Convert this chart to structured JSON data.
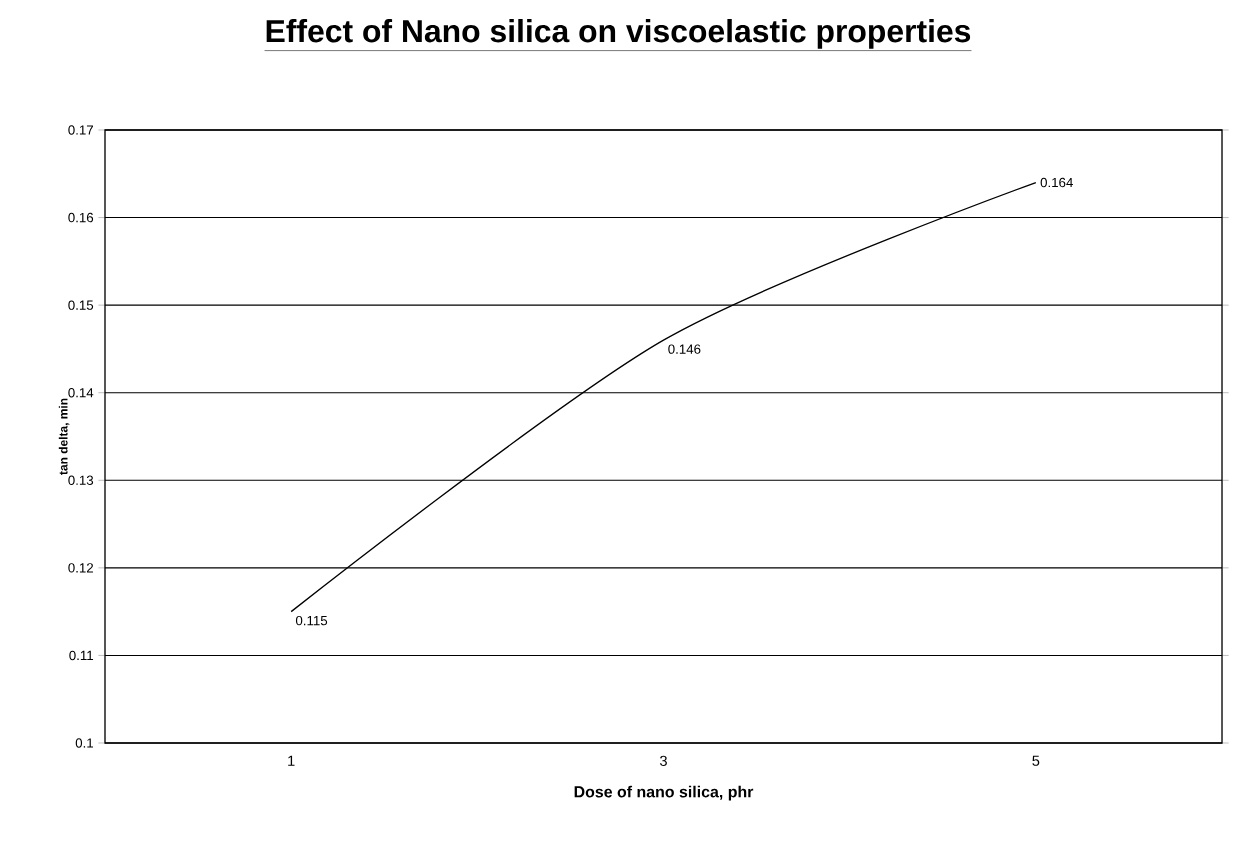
{
  "chart_data": {
    "type": "line",
    "title": "Effect of Nano silica on viscoelastic properties",
    "xlabel": "Dose of nano silica, phr",
    "ylabel": "tan delta, min",
    "categories": [
      "1",
      "3",
      "5"
    ],
    "values": [
      0.115,
      0.146,
      0.164
    ],
    "color": "#000000",
    "ylim": [
      0.1,
      0.17
    ],
    "yticks": [
      0.1,
      0.11,
      0.12,
      0.13,
      0.14,
      0.15,
      0.16,
      0.17
    ],
    "grid": "y",
    "data_labels": true,
    "marker": "none",
    "line_style": "solid"
  }
}
